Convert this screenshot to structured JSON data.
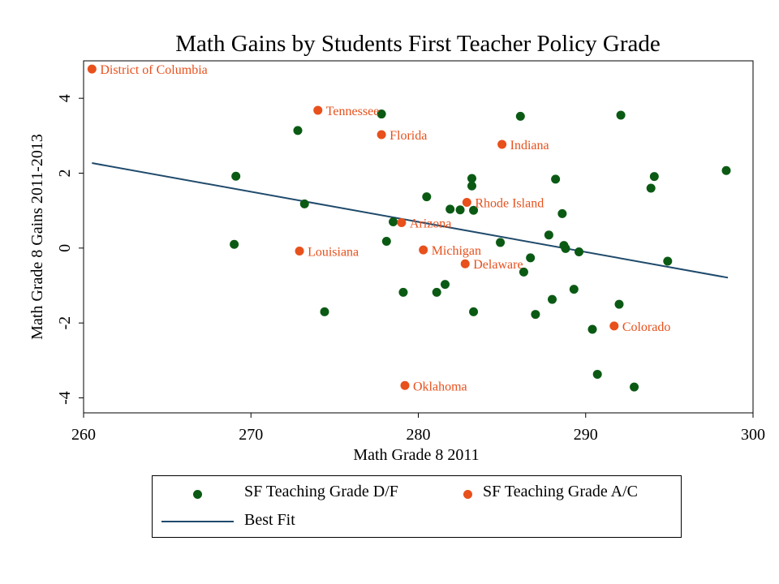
{
  "colors": {
    "green": "#0b5a14",
    "orange": "#e8501c",
    "line": "#1f4a6b",
    "label": "#e8501c"
  },
  "chart_data": {
    "type": "scatter",
    "title": "Math Gains by Students First Teacher Policy Grade",
    "xlabel": "Math Grade 8 2011",
    "ylabel": "Math Grade 8 Gains 2011-2013",
    "xlim": [
      260,
      300
    ],
    "ylim": [
      -4.4,
      5.0
    ],
    "xticks": [
      260,
      270,
      280,
      290,
      300
    ],
    "yticks": [
      -4,
      -2,
      0,
      2,
      4
    ],
    "grid": false,
    "legend_position": "bottom",
    "series": [
      {
        "name": "SF Teaching Grade D/F",
        "marker": "dot",
        "points": [
          [
            269.1,
            1.92
          ],
          [
            269.0,
            0.1
          ],
          [
            272.8,
            3.14
          ],
          [
            273.2,
            1.18
          ],
          [
            274.4,
            -1.7
          ],
          [
            277.8,
            3.58
          ],
          [
            278.1,
            0.18
          ],
          [
            278.5,
            0.7
          ],
          [
            279.1,
            -1.18
          ],
          [
            280.5,
            1.37
          ],
          [
            281.1,
            -1.18
          ],
          [
            281.6,
            -0.97
          ],
          [
            281.9,
            1.04
          ],
          [
            282.5,
            1.02
          ],
          [
            283.2,
            1.86
          ],
          [
            283.2,
            1.66
          ],
          [
            283.3,
            1.01
          ],
          [
            283.3,
            -1.7
          ],
          [
            284.9,
            0.15
          ],
          [
            286.1,
            3.52
          ],
          [
            286.3,
            -0.64
          ],
          [
            286.7,
            -0.26
          ],
          [
            287.0,
            -1.77
          ],
          [
            287.8,
            0.35
          ],
          [
            288.0,
            -1.37
          ],
          [
            288.2,
            1.84
          ],
          [
            288.6,
            0.92
          ],
          [
            288.7,
            0.07
          ],
          [
            288.8,
            -0.01
          ],
          [
            289.3,
            -1.1
          ],
          [
            289.6,
            -0.1
          ],
          [
            290.4,
            -2.17
          ],
          [
            290.7,
            -3.37
          ],
          [
            292.0,
            -1.5
          ],
          [
            292.1,
            3.55
          ],
          [
            292.9,
            -3.71
          ],
          [
            293.9,
            1.6
          ],
          [
            294.1,
            1.91
          ],
          [
            294.9,
            -0.35
          ],
          [
            298.4,
            2.07
          ]
        ]
      },
      {
        "name": "SF Teaching Grade A/C",
        "marker": "dot",
        "points": [
          {
            "label": "District of Columbia",
            "x": 260.5,
            "y": 4.78
          },
          {
            "label": "Tennessee",
            "x": 274.0,
            "y": 3.68
          },
          {
            "label": "Florida",
            "x": 277.8,
            "y": 3.03
          },
          {
            "label": "Indiana",
            "x": 285.0,
            "y": 2.77
          },
          {
            "label": "Rhode Island",
            "x": 282.9,
            "y": 1.22
          },
          {
            "label": "Arizona",
            "x": 279.0,
            "y": 0.68
          },
          {
            "label": "Louisiana",
            "x": 272.9,
            "y": -0.08
          },
          {
            "label": "Michigan",
            "x": 280.3,
            "y": -0.05
          },
          {
            "label": "Delaware",
            "x": 282.8,
            "y": -0.42
          },
          {
            "label": "Colorado",
            "x": 291.7,
            "y": -2.08
          },
          {
            "label": "Oklahoma",
            "x": 279.2,
            "y": -3.67
          }
        ]
      },
      {
        "name": "Best Fit",
        "type": "line",
        "x": [
          260.5,
          298.5
        ],
        "y": [
          2.27,
          -0.79
        ]
      }
    ]
  }
}
